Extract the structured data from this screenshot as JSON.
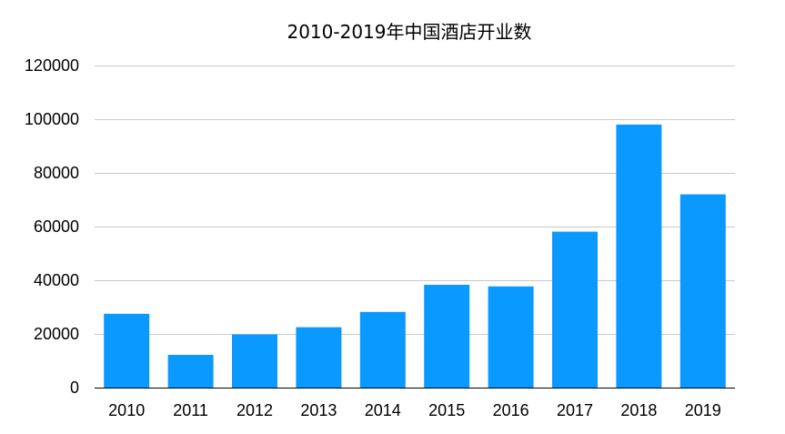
{
  "chart_data": {
    "type": "bar",
    "title": "2010-2019年中国酒店开业数",
    "xlabel": "",
    "ylabel": "",
    "categories": [
      "2010",
      "2011",
      "2012",
      "2013",
      "2014",
      "2015",
      "2016",
      "2017",
      "2018",
      "2019"
    ],
    "values": [
      27500,
      12200,
      19800,
      22500,
      28200,
      38300,
      37700,
      58100,
      98000,
      72000
    ],
    "ylim": [
      0,
      120000
    ],
    "y_ticks": [
      0,
      20000,
      40000,
      60000,
      80000,
      100000,
      120000
    ],
    "y_tick_labels": [
      "0",
      "20000",
      "40000",
      "60000",
      "80000",
      "100000",
      "120000"
    ],
    "grid": true,
    "legend": "none",
    "colors": {
      "bar": "#0a99ff",
      "grid": "#c8c8c8",
      "axis": "#000000",
      "text": "#000000"
    }
  }
}
